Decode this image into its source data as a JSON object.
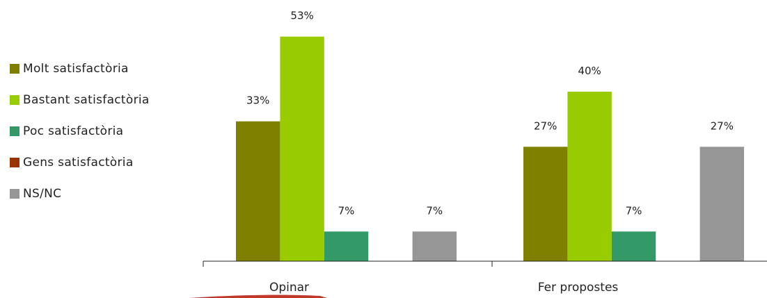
{
  "chart_data": {
    "type": "bar",
    "categories": [
      "Opinar",
      "Fer propostes"
    ],
    "series": [
      {
        "name": "Molt satisfactòria",
        "color": "#808000",
        "values": [
          33,
          27
        ]
      },
      {
        "name": "Bastant satisfactòria",
        "color": "#99cc00",
        "values": [
          53,
          40
        ]
      },
      {
        "name": "Poc satisfactòria",
        "color": "#339966",
        "values": [
          7,
          7
        ]
      },
      {
        "name": "Gens satisfactòria",
        "color": "#993300",
        "values": [
          0,
          0
        ]
      },
      {
        "name": "NS/NC",
        "color": "#969696",
        "values": [
          7,
          27
        ]
      }
    ],
    "value_suffix": "%",
    "title": "",
    "xlabel": "",
    "ylabel": "",
    "ylim": [
      0,
      60
    ],
    "grid": false,
    "legend_position": "left"
  }
}
